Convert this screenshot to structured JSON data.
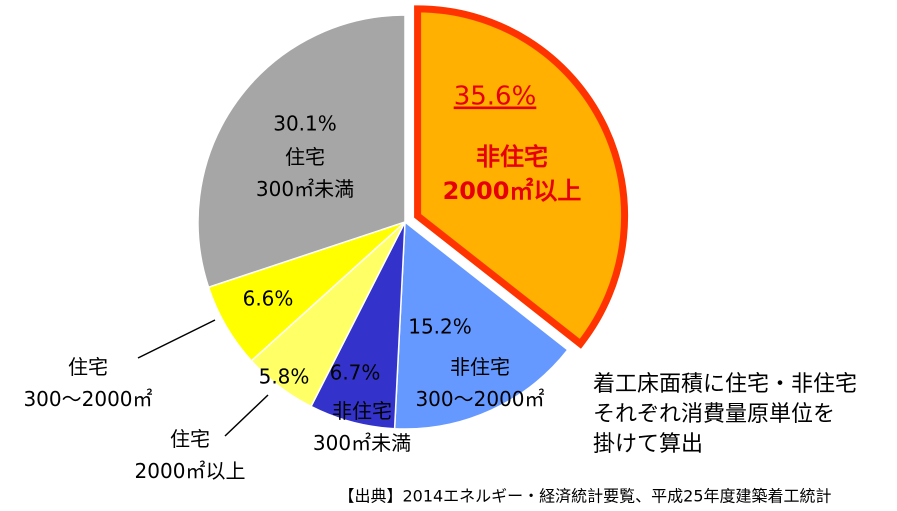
{
  "chart_data": {
    "type": "pie",
    "categories": [
      "非住宅\n2000㎡以上",
      "非住宅\n300〜2000㎡",
      "非住宅\n300㎡未満",
      "住宅\n2000㎡以上",
      "住宅\n300〜2000㎡",
      "住宅\n300㎡未満"
    ],
    "values": [
      35.6,
      15.2,
      6.7,
      5.8,
      6.6,
      30.1
    ],
    "value_labels": [
      "35.6%",
      "15.2%",
      "6.7%",
      "5.8%",
      "6.6%",
      "30.1%"
    ],
    "colors": [
      "#FFB000",
      "#6699FF",
      "#3333CC",
      "#FFFF66",
      "#FFFF00",
      "#A6A6A6"
    ],
    "annotations": [
      "着工床面積に住宅・非住宅\nそれぞれ消費量原単位を\n掛けて算出",
      "【出典】2014エネルギー・経済統計要覧、平成25年度建築着工統計"
    ]
  }
}
